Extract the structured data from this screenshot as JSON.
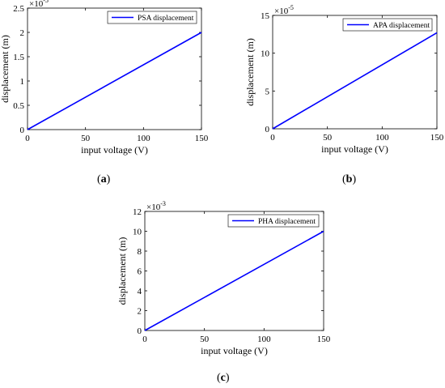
{
  "chart_data": [
    {
      "type": "line",
      "panel_label": "a",
      "xlabel": "input voltage (V)",
      "ylabel": "displacement (m)",
      "xlim": [
        0,
        150
      ],
      "ylim": [
        0,
        2.5
      ],
      "x_ticks": [
        0,
        50,
        100,
        150
      ],
      "y_ticks": [
        0,
        0.5,
        1,
        1.5,
        2,
        2.5
      ],
      "y_tick_labels": [
        "0",
        "0.5",
        "1",
        "1.5",
        "2",
        "2.5"
      ],
      "y_multiplier": "×10",
      "y_exponent": "-5",
      "grid": false,
      "legend_position": "top-right",
      "series": [
        {
          "name": "PSA displacement",
          "color": "#0000ff",
          "x": [
            0,
            150
          ],
          "y": [
            0,
            2.0
          ]
        }
      ]
    },
    {
      "type": "line",
      "panel_label": "b",
      "xlabel": "input voltage (V)",
      "ylabel": "displacement (m)",
      "xlim": [
        0,
        150
      ],
      "ylim": [
        0,
        15
      ],
      "x_ticks": [
        0,
        50,
        100,
        150
      ],
      "y_ticks": [
        0,
        5,
        10,
        15
      ],
      "y_tick_labels": [
        "0",
        "5",
        "10",
        "15"
      ],
      "y_multiplier": "×10",
      "y_exponent": "-5",
      "grid": false,
      "legend_position": "top-right",
      "series": [
        {
          "name": "APA displacement",
          "color": "#0000ff",
          "x": [
            0,
            150
          ],
          "y": [
            0,
            12.7
          ]
        }
      ]
    },
    {
      "type": "line",
      "panel_label": "c",
      "xlabel": "input voltage (V)",
      "ylabel": "displacement (m)",
      "xlim": [
        0,
        150
      ],
      "ylim": [
        0,
        12
      ],
      "x_ticks": [
        0,
        50,
        100,
        150
      ],
      "y_ticks": [
        0,
        2,
        4,
        6,
        8,
        10,
        12
      ],
      "y_tick_labels": [
        "0",
        "2",
        "4",
        "6",
        "8",
        "10",
        "12"
      ],
      "y_multiplier": "×10",
      "y_exponent": "-3",
      "grid": false,
      "legend_position": "top-right",
      "series": [
        {
          "name": "PHA displacement",
          "color": "#0000ff",
          "x": [
            0,
            150
          ],
          "y": [
            0,
            10
          ]
        }
      ]
    }
  ]
}
